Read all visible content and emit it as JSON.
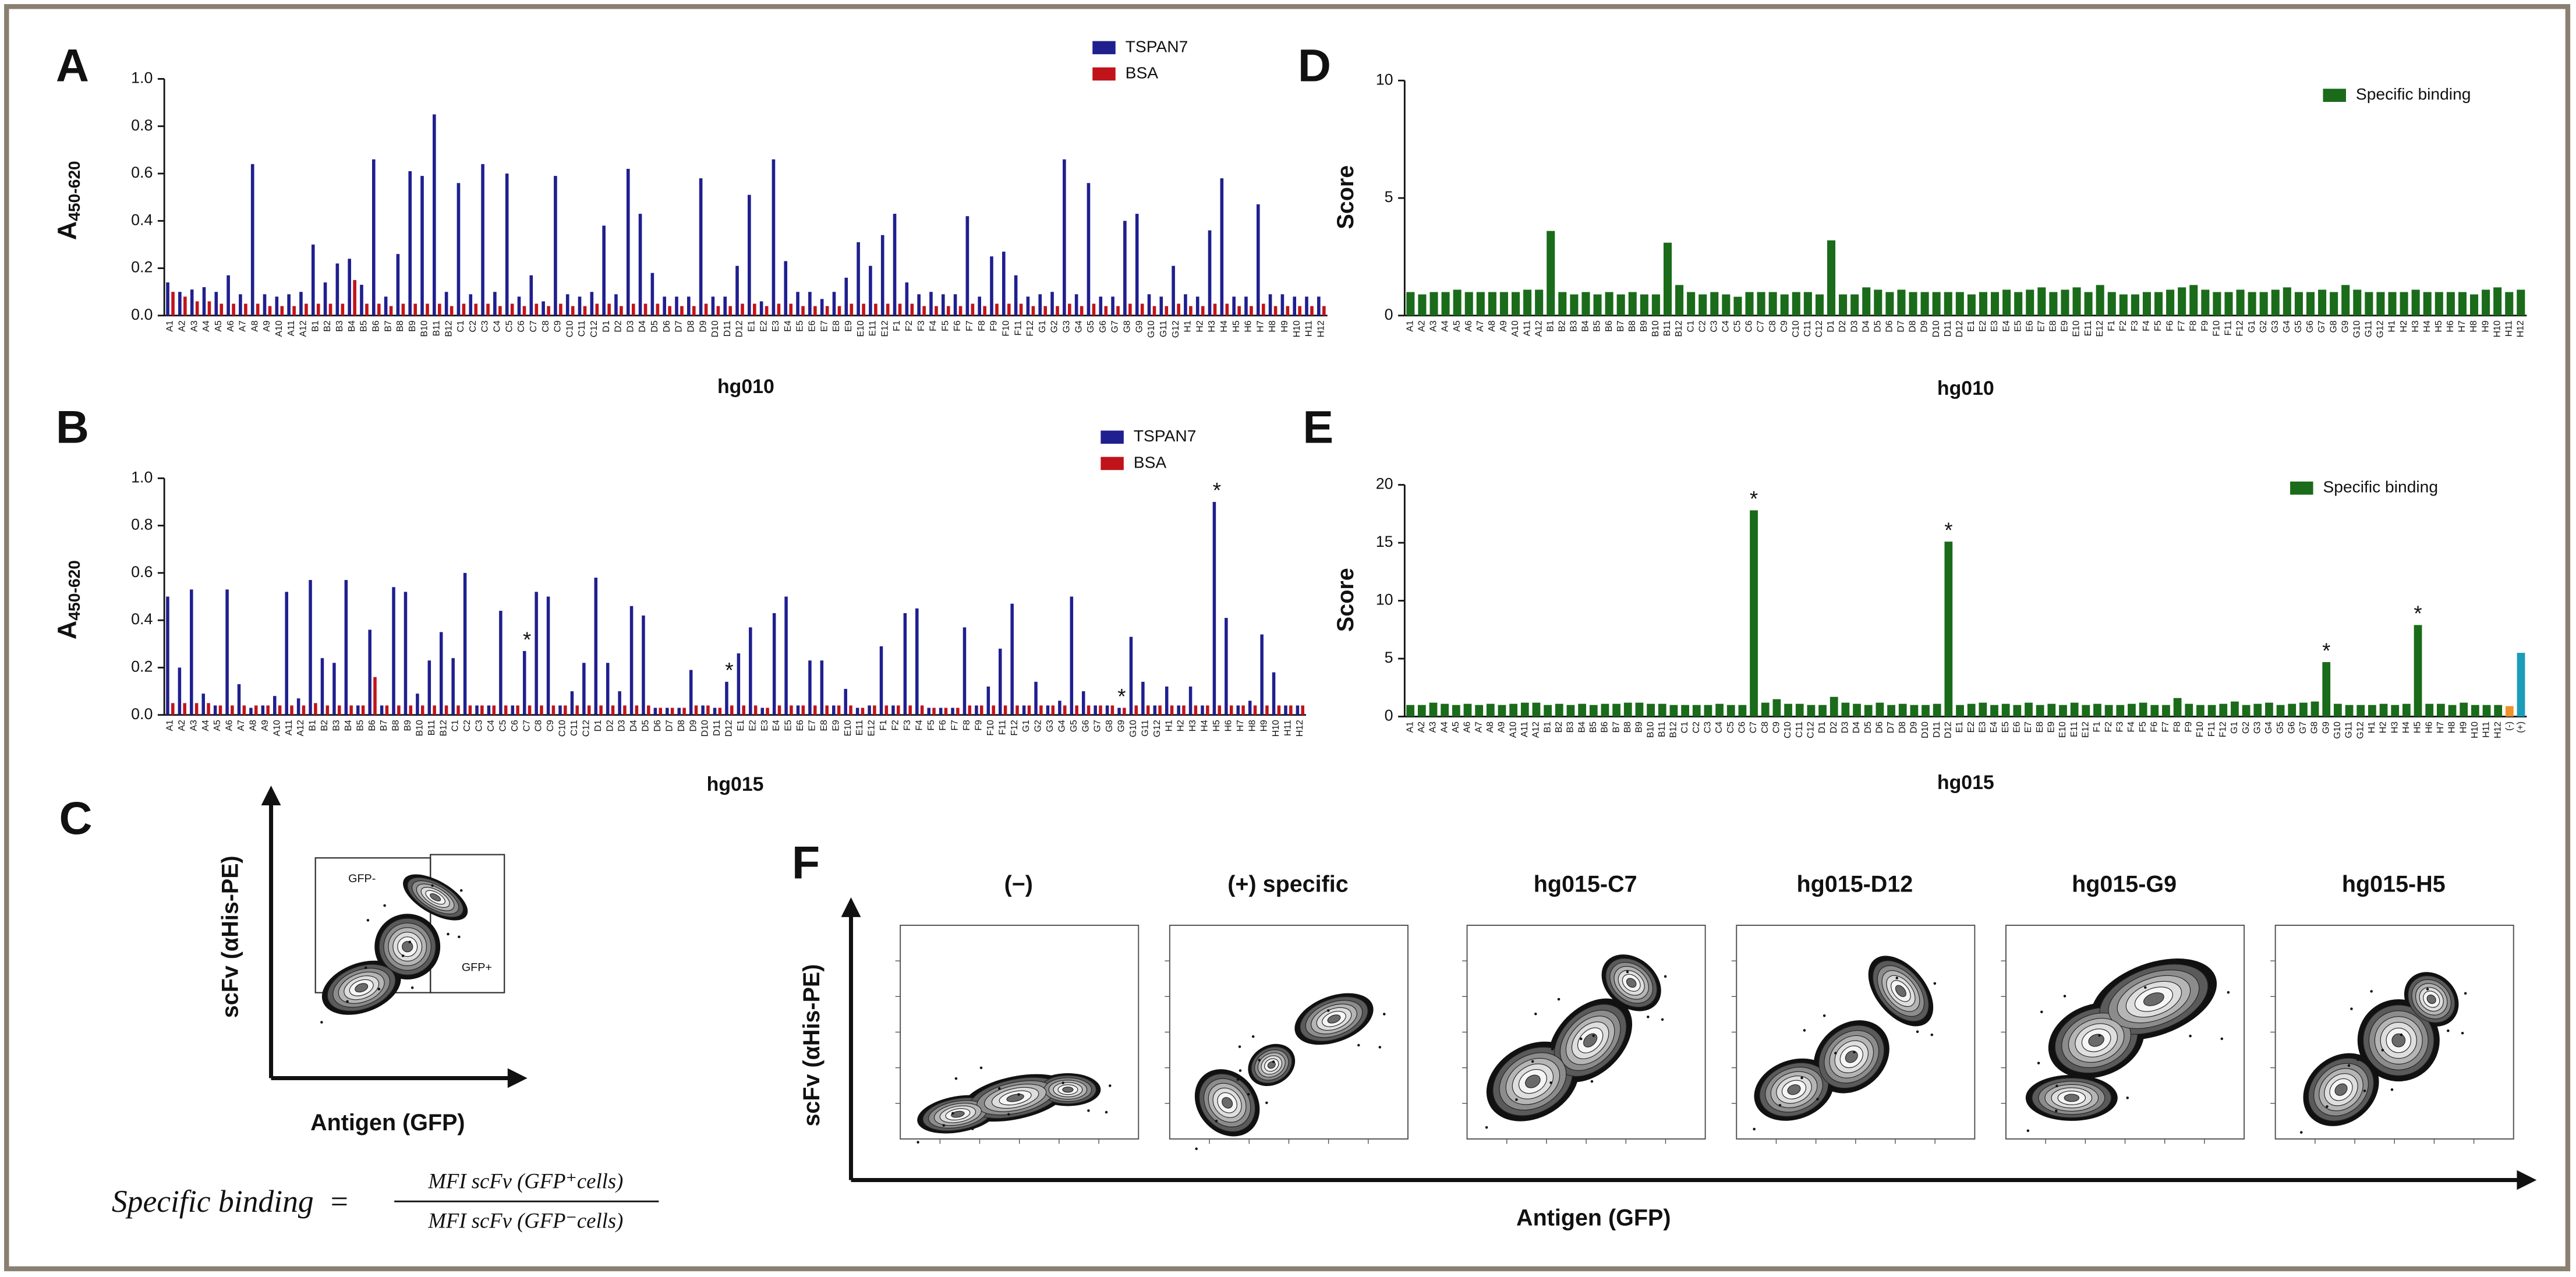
{
  "chart_data": [
    {
      "type": "bar",
      "panel": "A",
      "y_label": "A",
      "y_label_sub": "450-620",
      "x_label": "hg010",
      "categories": [
        "A1",
        "A2",
        "A3",
        "A4",
        "A5",
        "A6",
        "A7",
        "A8",
        "A9",
        "A10",
        "A11",
        "A12",
        "B1",
        "B2",
        "B3",
        "B4",
        "B5",
        "B6",
        "B7",
        "B8",
        "B9",
        "B10",
        "B11",
        "B12",
        "C1",
        "C2",
        "C3",
        "C4",
        "C5",
        "C6",
        "C7",
        "C8",
        "C9",
        "C10",
        "C11",
        "C12",
        "D1",
        "D2",
        "D3",
        "D4",
        "D5",
        "D6",
        "D7",
        "D8",
        "D9",
        "D10",
        "D11",
        "D12",
        "E1",
        "E2",
        "E3",
        "E4",
        "E5",
        "E6",
        "E7",
        "E8",
        "E9",
        "E10",
        "E11",
        "E12",
        "F1",
        "F2",
        "F3",
        "F4",
        "F5",
        "F6",
        "F7",
        "F8",
        "F9",
        "F10",
        "F11",
        "F12",
        "G1",
        "G2",
        "G3",
        "G4",
        "G5",
        "G6",
        "G7",
        "G8",
        "G9",
        "G10",
        "G11",
        "G12",
        "H1",
        "H2",
        "H3",
        "H4",
        "H5",
        "H6",
        "H7",
        "H8",
        "H9",
        "H10",
        "H11",
        "H12"
      ],
      "series": [
        {
          "name": "TSPAN7",
          "color": "#1f1f8f",
          "values": [
            0.14,
            0.1,
            0.11,
            0.12,
            0.1,
            0.17,
            0.09,
            0.64,
            0.09,
            0.08,
            0.09,
            0.1,
            0.3,
            0.14,
            0.22,
            0.24,
            0.13,
            0.66,
            0.08,
            0.26,
            0.61,
            0.59,
            0.85,
            0.1,
            0.56,
            0.09,
            0.64,
            0.1,
            0.6,
            0.08,
            0.17,
            0.06,
            0.59,
            0.09,
            0.08,
            0.1,
            0.38,
            0.09,
            0.62,
            0.43,
            0.18,
            0.08,
            0.08,
            0.08,
            0.58,
            0.08,
            0.08,
            0.21,
            0.51,
            0.06,
            0.66,
            0.23,
            0.1,
            0.1,
            0.07,
            0.1,
            0.16,
            0.31,
            0.21,
            0.34,
            0.43,
            0.14,
            0.09,
            0.1,
            0.09,
            0.09,
            0.42,
            0.08,
            0.25,
            0.27,
            0.17,
            0.08,
            0.09,
            0.1,
            0.66,
            0.09,
            0.56,
            0.08,
            0.08,
            0.4,
            0.43,
            0.09,
            0.08,
            0.21,
            0.09,
            0.08,
            0.36,
            0.58,
            0.08,
            0.08,
            0.47,
            0.09,
            0.09,
            0.08,
            0.08,
            0.08
          ]
        },
        {
          "name": "BSA",
          "color": "#c0141a",
          "values": [
            0.1,
            0.08,
            0.06,
            0.06,
            0.05,
            0.05,
            0.05,
            0.05,
            0.04,
            0.04,
            0.04,
            0.05,
            0.05,
            0.05,
            0.05,
            0.15,
            0.05,
            0.05,
            0.04,
            0.05,
            0.05,
            0.05,
            0.05,
            0.04,
            0.05,
            0.05,
            0.05,
            0.04,
            0.05,
            0.04,
            0.05,
            0.04,
            0.05,
            0.04,
            0.04,
            0.05,
            0.05,
            0.04,
            0.05,
            0.05,
            0.05,
            0.04,
            0.04,
            0.04,
            0.05,
            0.04,
            0.04,
            0.05,
            0.05,
            0.04,
            0.05,
            0.05,
            0.04,
            0.04,
            0.04,
            0.04,
            0.05,
            0.05,
            0.05,
            0.05,
            0.05,
            0.05,
            0.04,
            0.04,
            0.04,
            0.04,
            0.05,
            0.04,
            0.05,
            0.05,
            0.05,
            0.04,
            0.04,
            0.04,
            0.05,
            0.04,
            0.05,
            0.04,
            0.04,
            0.05,
            0.05,
            0.04,
            0.04,
            0.05,
            0.04,
            0.04,
            0.05,
            0.05,
            0.04,
            0.04,
            0.05,
            0.04,
            0.04,
            0.04,
            0.04,
            0.04
          ]
        }
      ],
      "ylim": [
        0,
        1
      ],
      "yticks": [
        {
          "value": 0,
          "label": "0.0"
        },
        {
          "value": 0.2,
          "label": "0.2"
        },
        {
          "value": 0.4,
          "label": "0.4"
        },
        {
          "value": 0.6,
          "label": "0.6"
        },
        {
          "value": 0.8,
          "label": "0.8"
        },
        {
          "value": 1,
          "label": "1.0"
        }
      ],
      "legend": "top-right"
    },
    {
      "type": "bar",
      "panel": "B",
      "y_label": "A",
      "y_label_sub": "450-620",
      "x_label": "hg015",
      "categories": [
        "A1",
        "A2",
        "A3",
        "A4",
        "A5",
        "A6",
        "A7",
        "A8",
        "A9",
        "A10",
        "A11",
        "A12",
        "B1",
        "B2",
        "B3",
        "B4",
        "B5",
        "B6",
        "B7",
        "B8",
        "B9",
        "B10",
        "B11",
        "B12",
        "C1",
        "C2",
        "C3",
        "C4",
        "C5",
        "C6",
        "C7",
        "C8",
        "C9",
        "C10",
        "C11",
        "C12",
        "D1",
        "D2",
        "D3",
        "D4",
        "D5",
        "D6",
        "D7",
        "D8",
        "D9",
        "D10",
        "D11",
        "D12",
        "E1",
        "E2",
        "E3",
        "E4",
        "E5",
        "E6",
        "E7",
        "E8",
        "E9",
        "E10",
        "E11",
        "E12",
        "F1",
        "F2",
        "F3",
        "F4",
        "F5",
        "F6",
        "F7",
        "F8",
        "F9",
        "F10",
        "F11",
        "F12",
        "G1",
        "G2",
        "G3",
        "G4",
        "G5",
        "G6",
        "G7",
        "G8",
        "G9",
        "G10",
        "G11",
        "G12",
        "H1",
        "H2",
        "H3",
        "H4",
        "H5",
        "H6",
        "H7",
        "H8",
        "H9",
        "H10",
        "H11",
        "H12"
      ],
      "series": [
        {
          "name": "TSPAN7",
          "color": "#1f1f8f",
          "values": [
            0.5,
            0.2,
            0.53,
            0.09,
            0.04,
            0.53,
            0.13,
            0.03,
            0.04,
            0.08,
            0.52,
            0.07,
            0.57,
            0.24,
            0.22,
            0.57,
            0.04,
            0.36,
            0.04,
            0.54,
            0.52,
            0.09,
            0.23,
            0.35,
            0.24,
            0.6,
            0.04,
            0.04,
            0.44,
            0.04,
            0.27,
            0.52,
            0.5,
            0.04,
            0.1,
            0.22,
            0.58,
            0.22,
            0.1,
            0.46,
            0.42,
            0.03,
            0.03,
            0.03,
            0.19,
            0.04,
            0.03,
            0.14,
            0.26,
            0.37,
            0.03,
            0.43,
            0.5,
            0.04,
            0.23,
            0.23,
            0.04,
            0.11,
            0.03,
            0.04,
            0.29,
            0.04,
            0.43,
            0.45,
            0.03,
            0.03,
            0.03,
            0.37,
            0.04,
            0.12,
            0.28,
            0.47,
            0.04,
            0.14,
            0.04,
            0.06,
            0.5,
            0.1,
            0.04,
            0.04,
            0.03,
            0.33,
            0.14,
            0.04,
            0.12,
            0.04,
            0.12,
            0.04,
            0.9,
            0.41,
            0.04,
            0.06,
            0.34,
            0.18,
            0.04,
            0.04
          ]
        },
        {
          "name": "BSA",
          "color": "#c0141a",
          "values": [
            0.05,
            0.05,
            0.05,
            0.05,
            0.04,
            0.04,
            0.04,
            0.04,
            0.04,
            0.04,
            0.04,
            0.04,
            0.05,
            0.04,
            0.04,
            0.04,
            0.04,
            0.16,
            0.04,
            0.04,
            0.04,
            0.04,
            0.04,
            0.04,
            0.04,
            0.04,
            0.04,
            0.04,
            0.04,
            0.04,
            0.04,
            0.04,
            0.04,
            0.04,
            0.04,
            0.04,
            0.04,
            0.04,
            0.04,
            0.04,
            0.04,
            0.03,
            0.03,
            0.03,
            0.04,
            0.04,
            0.03,
            0.04,
            0.04,
            0.04,
            0.03,
            0.04,
            0.04,
            0.04,
            0.04,
            0.04,
            0.04,
            0.04,
            0.03,
            0.04,
            0.04,
            0.04,
            0.04,
            0.04,
            0.03,
            0.03,
            0.03,
            0.04,
            0.04,
            0.04,
            0.04,
            0.04,
            0.04,
            0.04,
            0.04,
            0.04,
            0.04,
            0.04,
            0.04,
            0.04,
            0.03,
            0.04,
            0.04,
            0.04,
            0.04,
            0.04,
            0.04,
            0.04,
            0.04,
            0.04,
            0.04,
            0.04,
            0.04,
            0.04,
            0.04,
            0.04
          ]
        }
      ],
      "ylim": [
        0,
        1
      ],
      "yticks": [
        {
          "value": 0,
          "label": "0.0"
        },
        {
          "value": 0.2,
          "label": "0.2"
        },
        {
          "value": 0.4,
          "label": "0.4"
        },
        {
          "value": 0.6,
          "label": "0.6"
        },
        {
          "value": 0.8,
          "label": "0.8"
        },
        {
          "value": 1,
          "label": "1.0"
        }
      ],
      "legend": "top-right",
      "annotations": [
        {
          "text": "*",
          "at": "C7"
        },
        {
          "text": "*",
          "at": "D12"
        },
        {
          "text": "*",
          "at": "G9"
        },
        {
          "text": "*",
          "at": "H5"
        }
      ]
    },
    {
      "type": "bar",
      "panel": "D",
      "y_label": "Score",
      "x_label": "hg010",
      "categories": [
        "A1",
        "A2",
        "A3",
        "A4",
        "A5",
        "A6",
        "A7",
        "A8",
        "A9",
        "A10",
        "A11",
        "A12",
        "B1",
        "B2",
        "B3",
        "B4",
        "B5",
        "B6",
        "B7",
        "B8",
        "B9",
        "B10",
        "B11",
        "B12",
        "C1",
        "C2",
        "C3",
        "C4",
        "C5",
        "C6",
        "C7",
        "C8",
        "C9",
        "C10",
        "C11",
        "C12",
        "D1",
        "D2",
        "D3",
        "D4",
        "D5",
        "D6",
        "D7",
        "D8",
        "D9",
        "D10",
        "D11",
        "D12",
        "E1",
        "E2",
        "E3",
        "E4",
        "E5",
        "E6",
        "E7",
        "E8",
        "E9",
        "E10",
        "E11",
        "E12",
        "F1",
        "F2",
        "F3",
        "F4",
        "F5",
        "F6",
        "F7",
        "F8",
        "F9",
        "F10",
        "F11",
        "F12",
        "G1",
        "G2",
        "G3",
        "G4",
        "G5",
        "G6",
        "G7",
        "G8",
        "G9",
        "G10",
        "G11",
        "G12",
        "H1",
        "H2",
        "H3",
        "H4",
        "H5",
        "H6",
        "H7",
        "H8",
        "H9",
        "H10",
        "H11",
        "H12"
      ],
      "series": [
        {
          "name": "Specific binding",
          "color": "#1a6b1a",
          "values": [
            1,
            0.9,
            1,
            1,
            1.1,
            1,
            1,
            1,
            1,
            1,
            1.1,
            1.1,
            3.6,
            1,
            0.9,
            1,
            0.9,
            1,
            0.9,
            1,
            0.9,
            0.9,
            3.1,
            1.3,
            1,
            0.9,
            1,
            0.9,
            0.8,
            1,
            1,
            1,
            0.9,
            1,
            1,
            0.9,
            3.2,
            0.9,
            0.9,
            1.2,
            1.1,
            1,
            1.1,
            1,
            1,
            1,
            1,
            1,
            0.9,
            1,
            1,
            1.1,
            1,
            1.1,
            1.2,
            1,
            1.1,
            1.2,
            1,
            1.3,
            1,
            0.9,
            0.9,
            1,
            1,
            1.1,
            1.2,
            1.3,
            1.1,
            1,
            1,
            1.1,
            1,
            1,
            1.1,
            1.2,
            1,
            1,
            1.1,
            1,
            1.3,
            1.1,
            1,
            1,
            1,
            1,
            1.1,
            1,
            1,
            1,
            1,
            0.9,
            1.1,
            1.2,
            1,
            1.1
          ]
        }
      ],
      "ylim": [
        0,
        10
      ],
      "yticks": [
        0,
        5,
        10
      ],
      "legend": "top-right"
    },
    {
      "type": "bar",
      "panel": "E",
      "y_label": "Score",
      "x_label": "hg015",
      "categories": [
        "A1",
        "A2",
        "A3",
        "A4",
        "A5",
        "A6",
        "A7",
        "A8",
        "A9",
        "A10",
        "A11",
        "A12",
        "B1",
        "B2",
        "B3",
        "B4",
        "B5",
        "B6",
        "B7",
        "B8",
        "B9",
        "B10",
        "B11",
        "B12",
        "C1",
        "C2",
        "C3",
        "C4",
        "C5",
        "C6",
        "C7",
        "C8",
        "C9",
        "C10",
        "C11",
        "C12",
        "D1",
        "D2",
        "D3",
        "D4",
        "D5",
        "D6",
        "D7",
        "D8",
        "D9",
        "D10",
        "D11",
        "D12",
        "E1",
        "E2",
        "E3",
        "E4",
        "E5",
        "E6",
        "E7",
        "E8",
        "E9",
        "E10",
        "E11",
        "E12",
        "F1",
        "F2",
        "F3",
        "F4",
        "F5",
        "F6",
        "F7",
        "F8",
        "F9",
        "F10",
        "F11",
        "F12",
        "G1",
        "G2",
        "G3",
        "G4",
        "G5",
        "G6",
        "G7",
        "G8",
        "G9",
        "G10",
        "G11",
        "G12",
        "H1",
        "H2",
        "H3",
        "H4",
        "H5",
        "H6",
        "H7",
        "H8",
        "H9",
        "H10",
        "H11",
        "H12",
        "(-)",
        "(+)"
      ],
      "series": [
        {
          "name": "Specific binding",
          "color": "#1a6b1a",
          "values": [
            1,
            1,
            1.2,
            1.1,
            1,
            1.1,
            1,
            1.1,
            1,
            1.1,
            1.2,
            1.2,
            1,
            1.1,
            1,
            1.1,
            1,
            1.1,
            1.1,
            1.2,
            1.2,
            1.1,
            1.1,
            1,
            1,
            1,
            1,
            1.1,
            1,
            1,
            17.8,
            1.2,
            1.5,
            1.1,
            1.1,
            1,
            1,
            1.7,
            1.2,
            1.1,
            1,
            1.2,
            1,
            1.1,
            1,
            1,
            1.1,
            15.1,
            1,
            1.1,
            1.2,
            1,
            1.1,
            1,
            1.2,
            1,
            1.1,
            1,
            1.2,
            1,
            1.1,
            1,
            1,
            1.1,
            1.2,
            1,
            1,
            1.6,
            1.1,
            1,
            1,
            1.1,
            1.3,
            1,
            1.1,
            1.2,
            1,
            1.1,
            1.2,
            1.3,
            4.7,
            1.1,
            1,
            1,
            1,
            1.1,
            1,
            1.1,
            7.9,
            1.1,
            1.1,
            1,
            1.2,
            1,
            1,
            1,
            0.9,
            5.5
          ]
        }
      ],
      "highlight_colors": {
        "(-)": "#f0922b",
        "(+)": "#1b9cb8"
      },
      "ylim": [
        0,
        20
      ],
      "yticks": [
        0,
        5,
        10,
        15,
        20
      ],
      "legend": "top-right",
      "annotations": [
        {
          "text": "*",
          "at": "C7"
        },
        {
          "text": "*",
          "at": "D12"
        },
        {
          "text": "*",
          "at": "G9"
        },
        {
          "text": "*",
          "at": "H5"
        }
      ]
    }
  ],
  "flow": {
    "panel_c": "C",
    "panel_f": "F",
    "gate_negative": "GFP-",
    "gate_positive": "GFP+",
    "y_label": "scFv (αHis-PE)",
    "x_label": "Antigen (GFP)",
    "titles": [
      "(−)",
      "(+) specific",
      "hg015-C7",
      "hg015-D12",
      "hg015-G9",
      "hg015-H5"
    ]
  },
  "formula": {
    "lhs": "Specific binding",
    "equals": "=",
    "numerator": "MFI scFv (GFP⁺cells)",
    "denominator": "MFI scFv (GFP⁻cells)"
  }
}
